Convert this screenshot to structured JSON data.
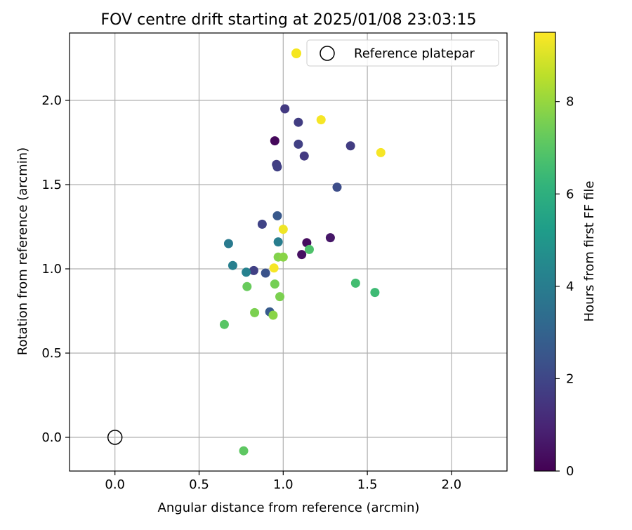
{
  "chart_data": {
    "type": "scatter",
    "title": "FOV centre drift starting at 2025/01/08 23:03:15",
    "xlabel": "Angular distance from reference (arcmin)",
    "ylabel": "Rotation from reference (arcmin)",
    "xlim": [
      -0.27,
      2.33
    ],
    "ylim": [
      -0.2,
      2.4
    ],
    "xticks": [
      0.0,
      0.5,
      1.0,
      1.5,
      2.0
    ],
    "xtick_labels": [
      "0.0",
      "0.5",
      "1.0",
      "1.5",
      "2.0"
    ],
    "yticks": [
      0.0,
      0.5,
      1.0,
      1.5,
      2.0
    ],
    "ytick_labels": [
      "0.0",
      "0.5",
      "1.0",
      "1.5",
      "2.0"
    ],
    "grid": true,
    "legend": {
      "placement": "top-right",
      "entries": [
        {
          "label": "",
          "marker": "filled-circle",
          "color": "#f5e61f"
        },
        {
          "label": "Reference platepar",
          "marker": "open-circle",
          "color": "#000000"
        }
      ]
    },
    "colorbar": {
      "label": "Hours from first FF file",
      "colormap": "viridis",
      "range": [
        0,
        9.5
      ],
      "ticks": [
        0,
        2,
        4,
        6,
        8
      ],
      "tick_labels": [
        "0",
        "2",
        "4",
        "6",
        "8"
      ]
    },
    "reference_point": {
      "x": 0.0,
      "y": 0.0,
      "label": "Reference platepar"
    },
    "series": [
      {
        "points": [
          {
            "x": 0.95,
            "y": 1.76,
            "c": 0.2
          },
          {
            "x": 1.14,
            "y": 1.155,
            "c": 0.3
          },
          {
            "x": 1.11,
            "y": 1.085,
            "c": 0.4
          },
          {
            "x": 1.28,
            "y": 1.185,
            "c": 0.6
          },
          {
            "x": 1.01,
            "y": 1.95,
            "c": 1.6
          },
          {
            "x": 1.09,
            "y": 1.87,
            "c": 1.7
          },
          {
            "x": 1.09,
            "y": 1.74,
            "c": 1.8
          },
          {
            "x": 1.125,
            "y": 1.67,
            "c": 1.6
          },
          {
            "x": 0.96,
            "y": 1.62,
            "c": 1.7
          },
          {
            "x": 0.965,
            "y": 1.605,
            "c": 1.8
          },
          {
            "x": 1.4,
            "y": 1.73,
            "c": 1.7
          },
          {
            "x": 1.32,
            "y": 1.485,
            "c": 2.2
          },
          {
            "x": 0.875,
            "y": 1.265,
            "c": 1.9
          },
          {
            "x": 0.965,
            "y": 1.315,
            "c": 2.6
          },
          {
            "x": 0.825,
            "y": 0.99,
            "c": 1.8
          },
          {
            "x": 0.895,
            "y": 0.975,
            "c": 2.4
          },
          {
            "x": 0.92,
            "y": 0.745,
            "c": 2.7
          },
          {
            "x": 0.675,
            "y": 1.15,
            "c": 3.9
          },
          {
            "x": 0.7,
            "y": 1.02,
            "c": 4.1
          },
          {
            "x": 0.78,
            "y": 0.98,
            "c": 4.2
          },
          {
            "x": 0.97,
            "y": 1.16,
            "c": 4.0
          },
          {
            "x": 1.155,
            "y": 1.115,
            "c": 6.8
          },
          {
            "x": 1.43,
            "y": 0.915,
            "c": 6.6
          },
          {
            "x": 1.545,
            "y": 0.86,
            "c": 6.5
          },
          {
            "x": 0.785,
            "y": 0.895,
            "c": 7.3
          },
          {
            "x": 0.65,
            "y": 0.67,
            "c": 7.0
          },
          {
            "x": 0.765,
            "y": -0.08,
            "c": 7.1
          },
          {
            "x": 0.83,
            "y": 0.74,
            "c": 7.6
          },
          {
            "x": 0.95,
            "y": 0.91,
            "c": 7.5
          },
          {
            "x": 0.98,
            "y": 0.835,
            "c": 7.6
          },
          {
            "x": 0.94,
            "y": 0.725,
            "c": 7.8
          },
          {
            "x": 0.97,
            "y": 1.07,
            "c": 7.7
          },
          {
            "x": 1.0,
            "y": 1.07,
            "c": 7.8
          },
          {
            "x": 0.945,
            "y": 1.005,
            "c": 9.4
          },
          {
            "x": 1.0,
            "y": 1.235,
            "c": 9.3
          },
          {
            "x": 1.225,
            "y": 1.885,
            "c": 9.4
          },
          {
            "x": 1.58,
            "y": 1.69,
            "c": 9.4
          }
        ]
      }
    ]
  }
}
